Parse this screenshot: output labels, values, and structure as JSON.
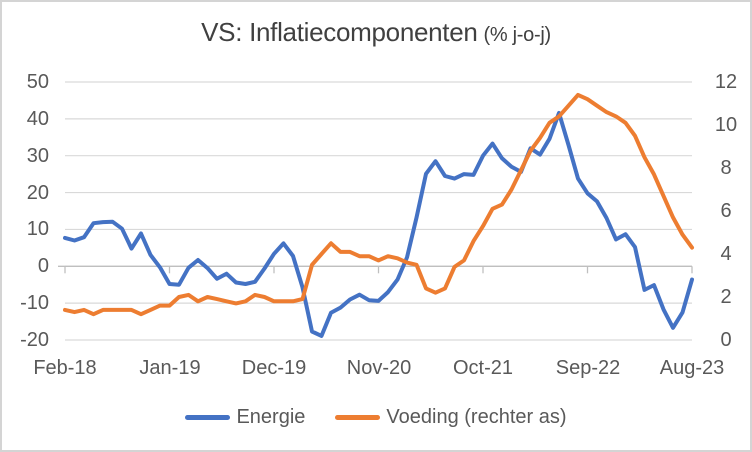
{
  "chart_data": {
    "type": "line",
    "title": "VS: Inflatiecomponenten",
    "title_suffix": "(% j-o-j)",
    "grid": true,
    "legend_position": "bottom",
    "x_unit": "month",
    "x_start": "Feb-18",
    "x_end": "Aug-23",
    "x_tick_labels": [
      "Feb-18",
      "Jan-19",
      "Dec-19",
      "Nov-20",
      "Oct-21",
      "Sep-22",
      "Aug-23"
    ],
    "left_axis": {
      "min": -20,
      "max": 50,
      "step": 10,
      "labels": [
        "50",
        "40",
        "30",
        "20",
        "10",
        "0",
        "-10",
        "-20"
      ]
    },
    "right_axis": {
      "min": 0,
      "max": 12,
      "step": 2,
      "labels": [
        "12",
        "10",
        "8",
        "6",
        "4",
        "2",
        "0"
      ]
    },
    "colors": {
      "grid": "#d9d9d9",
      "axis": "#bfbfbf",
      "text": "#595959",
      "title": "#404040"
    },
    "series": [
      {
        "name": "Energie",
        "axis": "left",
        "color": "#4472C4",
        "values": [
          7.7,
          7.0,
          7.9,
          11.7,
          12.0,
          12.1,
          10.2,
          4.8,
          8.9,
          3.1,
          -0.3,
          -4.8,
          -5.0,
          -0.4,
          1.7,
          -0.5,
          -3.4,
          -2.0,
          -4.4,
          -4.8,
          -4.2,
          -0.6,
          3.4,
          6.2,
          2.8,
          -5.7,
          -17.7,
          -18.9,
          -12.6,
          -11.2,
          -9.0,
          -7.7,
          -9.2,
          -9.4,
          -7.0,
          -3.6,
          2.4,
          13.2,
          25.1,
          28.5,
          24.5,
          23.8,
          25.0,
          24.8,
          30.0,
          33.3,
          29.3,
          27.0,
          25.6,
          32.0,
          30.3,
          34.6,
          41.6,
          32.9,
          23.8,
          19.8,
          17.6,
          13.1,
          7.3,
          8.7,
          5.2,
          -6.4,
          -5.1,
          -11.7,
          -16.7,
          -12.5,
          -3.6
        ]
      },
      {
        "name": "Voeding (rechter as)",
        "axis": "right",
        "color": "#ED7D31",
        "values": [
          1.4,
          1.3,
          1.4,
          1.2,
          1.4,
          1.4,
          1.4,
          1.4,
          1.2,
          1.4,
          1.6,
          1.6,
          2.0,
          2.1,
          1.8,
          2.0,
          1.9,
          1.8,
          1.7,
          1.8,
          2.1,
          2.0,
          1.8,
          1.8,
          1.8,
          1.9,
          3.5,
          4.0,
          4.5,
          4.1,
          4.1,
          3.9,
          3.9,
          3.7,
          3.9,
          3.8,
          3.6,
          3.5,
          2.4,
          2.2,
          2.4,
          3.4,
          3.7,
          4.6,
          5.3,
          6.1,
          6.3,
          7.0,
          7.9,
          8.8,
          9.4,
          10.1,
          10.4,
          10.9,
          11.4,
          11.2,
          10.9,
          10.6,
          10.4,
          10.1,
          9.5,
          8.5,
          7.7,
          6.7,
          5.7,
          4.9,
          4.3
        ]
      }
    ]
  }
}
